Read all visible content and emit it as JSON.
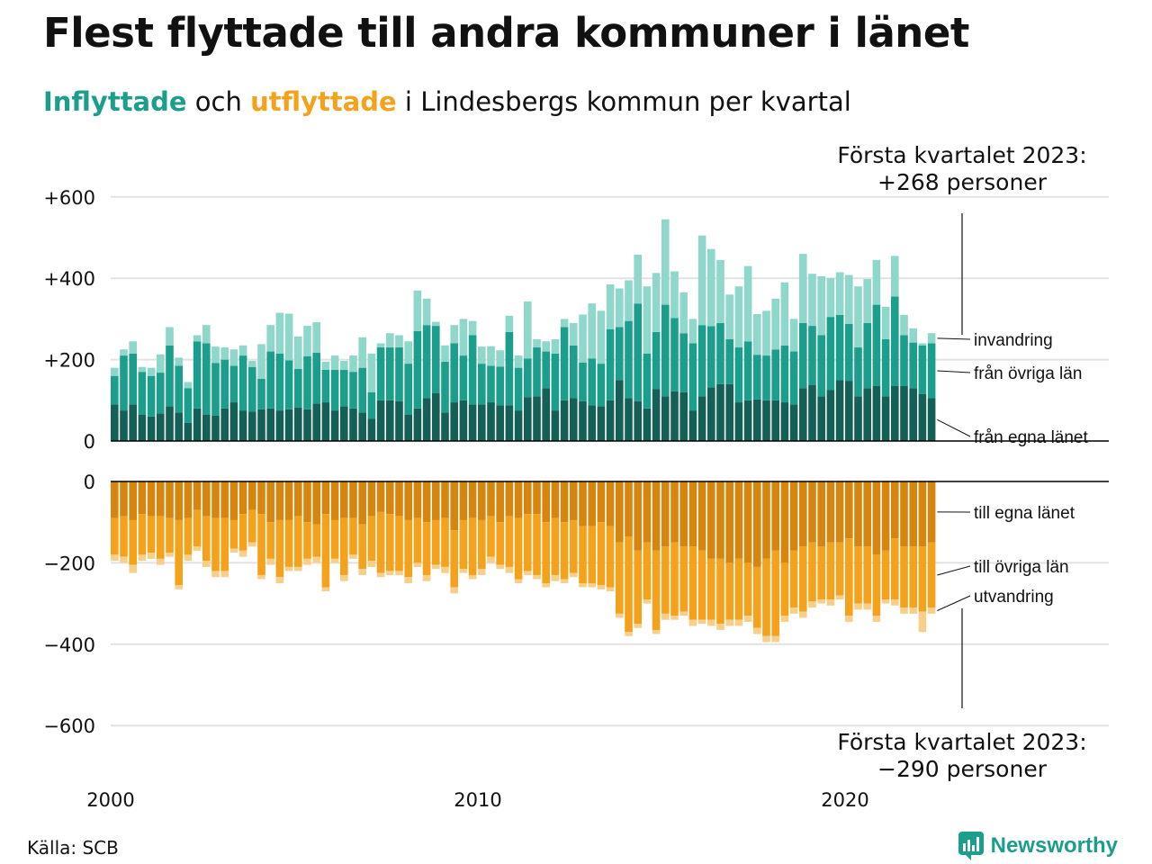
{
  "header": {
    "title": "Flest flyttade till andra kommuner i länet",
    "subtitle_inflyttade": "Inflyttade",
    "subtitle_och": " och ",
    "subtitle_utflyttade": "utflyttade",
    "subtitle_rest": " i Lindesbergs kommun per kvartal"
  },
  "footer": {
    "source": "Källa: SCB",
    "brand": "Newsworthy"
  },
  "colors": {
    "in_egna": "#145f56",
    "in_ovriga": "#1b9e8b",
    "in_invandring": "#8fd6cb",
    "out_egna": "#d6860f",
    "out_ovriga": "#f4a21c",
    "out_utvandring": "#f8cf8a",
    "grid": "#e2e2e2",
    "axis": "#000000"
  },
  "chart_data": {
    "type": "bar",
    "stacked": true,
    "x_start": "2000 Q1",
    "x_tick_labels": [
      "2000",
      "2010",
      "2020"
    ],
    "y_ticks_top": [
      "+600",
      "+400",
      "+200",
      "0"
    ],
    "y_ticks_bottom": [
      "0",
      "−200",
      "−400",
      "−600"
    ],
    "ylim_top": [
      0,
      600
    ],
    "ylim_bottom": [
      -600,
      0
    ],
    "grid": true,
    "annotation_top": [
      "Första kvartalet 2023:",
      "+268 personer"
    ],
    "annotation_bottom": [
      "Första kvartalet 2023:",
      "−290 personer"
    ],
    "in_labels": [
      "invandring",
      "från övriga län",
      "från egna länet"
    ],
    "out_labels": [
      "till egna länet",
      "till övriga län",
      "utvandring"
    ],
    "inflyttade": {
      "fran_egna_lanet": [
        90,
        75,
        90,
        65,
        60,
        68,
        85,
        70,
        45,
        80,
        65,
        62,
        80,
        95,
        75,
        72,
        78,
        80,
        75,
        78,
        82,
        78,
        92,
        95,
        75,
        85,
        80,
        70,
        55,
        100,
        100,
        98,
        65,
        80,
        105,
        118,
        70,
        95,
        100,
        90,
        90,
        95,
        88,
        88,
        75,
        108,
        110,
        130,
        75,
        100,
        105,
        98,
        88,
        85,
        100,
        150,
        105,
        98,
        80,
        128,
        110,
        122,
        120,
        75,
        110,
        132,
        140,
        140,
        95,
        100,
        102,
        100,
        100,
        95,
        90,
        130,
        138,
        110,
        125,
        150,
        148,
        110,
        130,
        135,
        110,
        135,
        135,
        130,
        115,
        105
      ],
      "fran_ovriga_lan": [
        70,
        135,
        125,
        105,
        100,
        100,
        150,
        115,
        85,
        165,
        175,
        130,
        120,
        90,
        135,
        110,
        75,
        140,
        140,
        120,
        95,
        130,
        125,
        80,
        100,
        90,
        90,
        110,
        65,
        130,
        130,
        132,
        125,
        190,
        180,
        165,
        125,
        145,
        110,
        170,
        100,
        90,
        95,
        180,
        105,
        95,
        120,
        90,
        140,
        180,
        130,
        95,
        115,
        105,
        175,
        130,
        190,
        240,
        135,
        140,
        225,
        180,
        145,
        165,
        175,
        150,
        150,
        110,
        135,
        145,
        110,
        110,
        125,
        140,
        130,
        160,
        145,
        150,
        180,
        160,
        140,
        120,
        160,
        200,
        140,
        220,
        125,
        112,
        120,
        135
      ],
      "invandring": [
        20,
        15,
        30,
        12,
        20,
        45,
        45,
        20,
        15,
        15,
        45,
        40,
        30,
        40,
        25,
        15,
        85,
        65,
        100,
        115,
        80,
        75,
        75,
        20,
        35,
        22,
        40,
        75,
        95,
        10,
        35,
        30,
        55,
        100,
        65,
        10,
        40,
        45,
        90,
        35,
        42,
        48,
        40,
        40,
        30,
        140,
        20,
        25,
        35,
        20,
        55,
        118,
        135,
        130,
        110,
        95,
        100,
        120,
        165,
        145,
        210,
        115,
        100,
        60,
        220,
        190,
        155,
        110,
        150,
        185,
        100,
        110,
        125,
        155,
        80,
        170,
        128,
        145,
        95,
        105,
        120,
        150,
        108,
        110,
        80,
        100,
        50,
        35,
        5,
        25
      ]
    },
    "utflyttade": {
      "till_egna_lanet": [
        90,
        85,
        95,
        80,
        85,
        85,
        90,
        95,
        90,
        70,
        85,
        90,
        90,
        95,
        80,
        70,
        80,
        100,
        95,
        95,
        85,
        100,
        105,
        80,
        95,
        90,
        90,
        105,
        85,
        75,
        80,
        85,
        95,
        90,
        100,
        95,
        90,
        120,
        95,
        90,
        95,
        85,
        100,
        85,
        90,
        80,
        80,
        100,
        90,
        100,
        95,
        110,
        110,
        100,
        110,
        150,
        135,
        170,
        150,
        170,
        160,
        150,
        160,
        160,
        170,
        190,
        190,
        200,
        190,
        200,
        210,
        190,
        170,
        200,
        170,
        160,
        150,
        160,
        150,
        150,
        140,
        160,
        160,
        180,
        170,
        140,
        160,
        160,
        160,
        150
      ],
      "till_ovriga_lan": [
        90,
        100,
        110,
        100,
        90,
        105,
        85,
        160,
        90,
        90,
        110,
        130,
        130,
        70,
        90,
        80,
        150,
        90,
        140,
        115,
        125,
        90,
        80,
        180,
        95,
        140,
        90,
        110,
        110,
        150,
        140,
        135,
        140,
        110,
        130,
        110,
        120,
        140,
        120,
        140,
        120,
        100,
        105,
        125,
        150,
        140,
        150,
        150,
        140,
        140,
        130,
        140,
        140,
        155,
        150,
        175,
        235,
        180,
        140,
        195,
        165,
        180,
        160,
        180,
        170,
        150,
        160,
        140,
        150,
        130,
        150,
        190,
        210,
        130,
        140,
        160,
        145,
        130,
        140,
        130,
        190,
        140,
        140,
        150,
        120,
        150,
        150,
        150,
        160,
        160
      ],
      "utvandring": [
        15,
        15,
        20,
        15,
        15,
        15,
        10,
        10,
        15,
        10,
        15,
        15,
        15,
        10,
        15,
        10,
        10,
        15,
        15,
        10,
        10,
        15,
        15,
        10,
        10,
        15,
        10,
        15,
        15,
        10,
        10,
        10,
        15,
        10,
        15,
        10,
        15,
        15,
        10,
        10,
        15,
        15,
        10,
        15,
        10,
        10,
        10,
        10,
        15,
        10,
        10,
        10,
        10,
        10,
        10,
        10,
        10,
        10,
        10,
        10,
        15,
        10,
        10,
        15,
        10,
        15,
        15,
        15,
        15,
        15,
        15,
        15,
        15,
        15,
        15,
        15,
        15,
        10,
        15,
        10,
        15,
        15,
        15,
        15,
        10,
        15,
        15,
        15,
        50,
        15
      ]
    }
  }
}
